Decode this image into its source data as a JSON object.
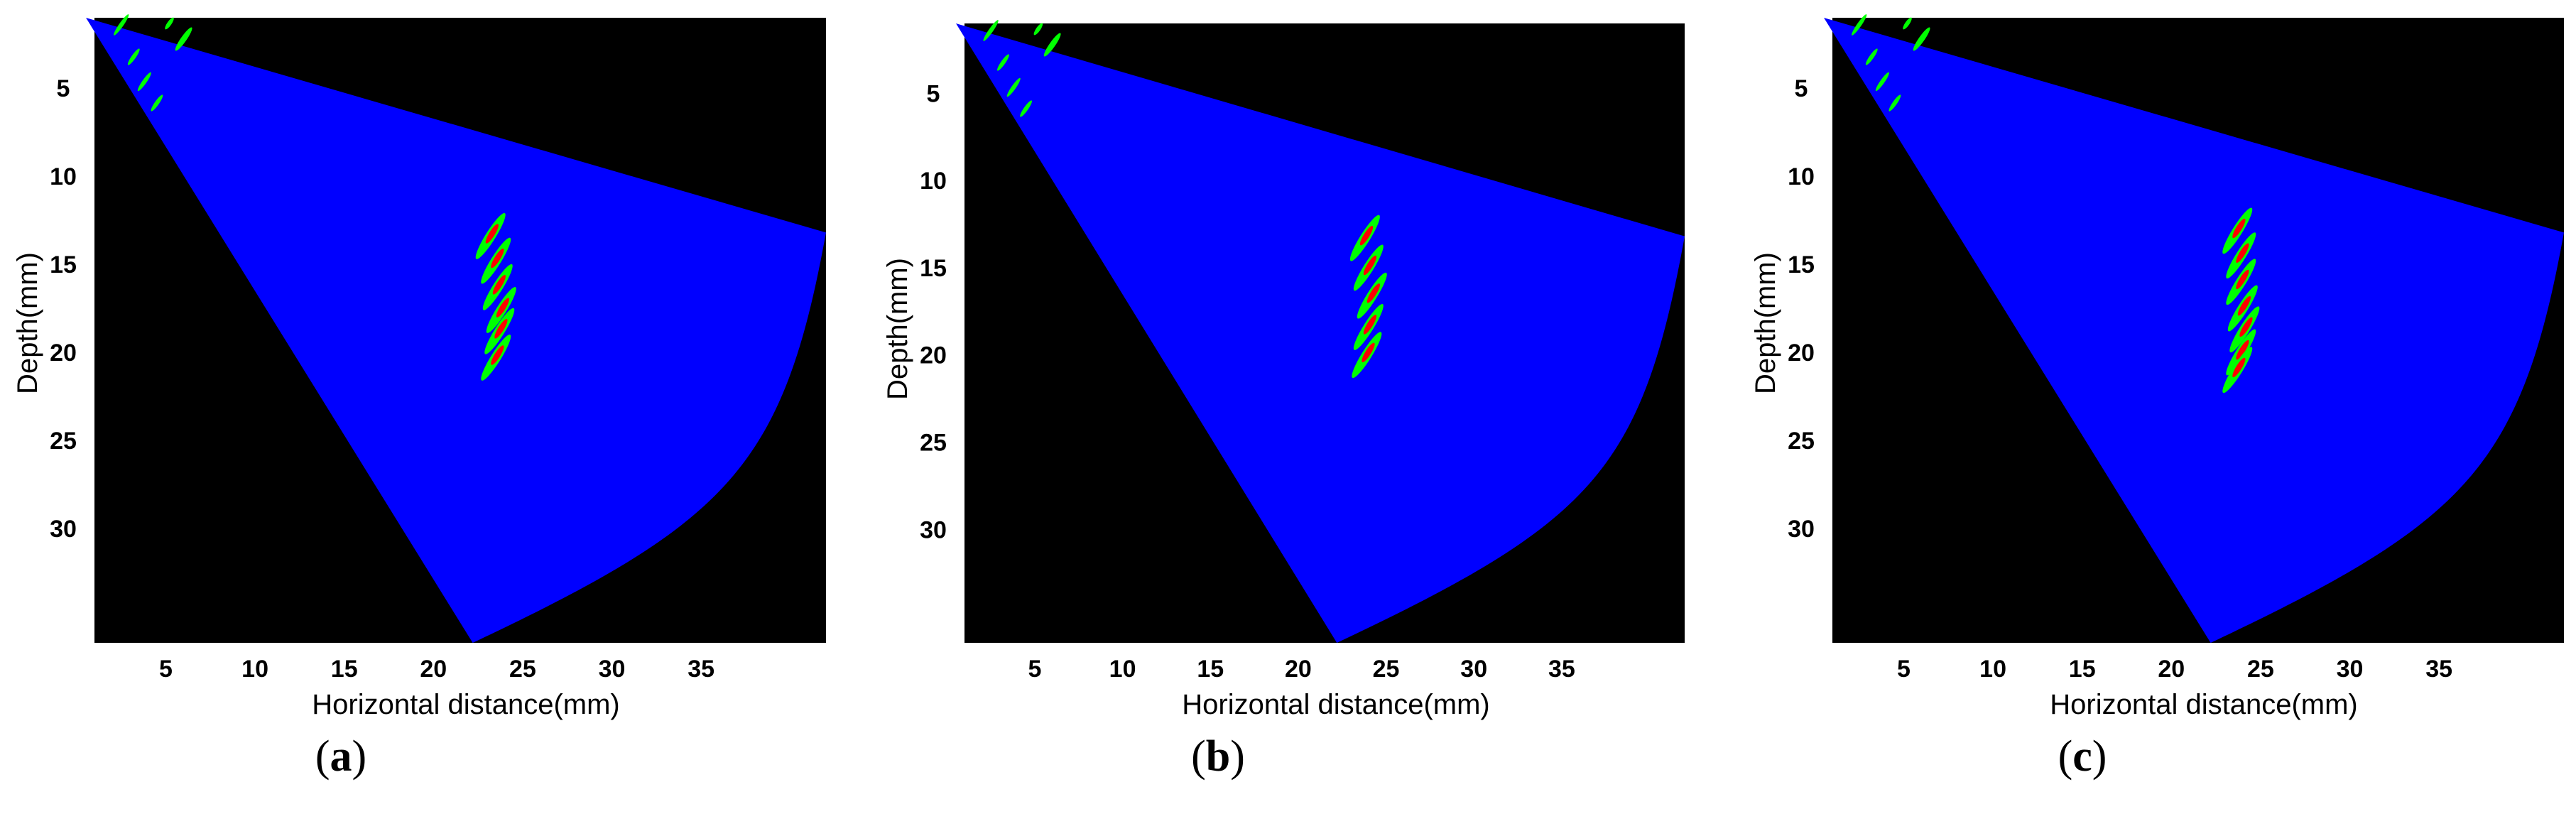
{
  "chart_data": [
    {
      "type": "heatmap",
      "caption": "a",
      "xlabel": "Horizontal distance(mm)",
      "ylabel": "Depth(mm)",
      "xticks": [
        5,
        10,
        15,
        20,
        25,
        30,
        35
      ],
      "yticks": [
        5,
        10,
        15,
        20,
        25,
        30
      ],
      "xlim": [
        1,
        42
      ],
      "ylim": [
        1,
        36.5
      ],
      "sector": {
        "apex": [
          1,
          1
        ],
        "bottom_point": [
          22.2,
          36.5
        ],
        "top_edge_end": [
          42,
          13.2
        ]
      },
      "colors": {
        "background": "#000000",
        "sector": "#0000ff",
        "echo_outer": "#00ff00",
        "echo_core": "#ff0000"
      },
      "defect_echoes": [
        {
          "x": 23.2,
          "y": 13.4
        },
        {
          "x": 23.5,
          "y": 14.8
        },
        {
          "x": 23.6,
          "y": 16.3
        },
        {
          "x": 23.8,
          "y": 17.6
        },
        {
          "x": 23.7,
          "y": 18.8
        },
        {
          "x": 23.5,
          "y": 20.3
        }
      ]
    },
    {
      "type": "heatmap",
      "caption": "b",
      "xlabel": "Horizontal distance(mm)",
      "ylabel": "Depth(mm)",
      "xticks": [
        5,
        10,
        15,
        20,
        25,
        30,
        35
      ],
      "yticks": [
        5,
        10,
        15,
        20,
        25,
        30
      ],
      "xlim": [
        1,
        42
      ],
      "ylim": [
        1,
        36.5
      ],
      "sector": {
        "apex": [
          1,
          1
        ],
        "bottom_point": [
          22.2,
          36.5
        ],
        "top_edge_end": [
          42,
          13.2
        ]
      },
      "colors": {
        "background": "#000000",
        "sector": "#0000ff",
        "echo_outer": "#00ff00",
        "echo_core": "#ff0000"
      },
      "defect_echoes": [
        {
          "x": 23.8,
          "y": 13.3
        },
        {
          "x": 24.0,
          "y": 15.0
        },
        {
          "x": 24.2,
          "y": 16.6
        },
        {
          "x": 24.0,
          "y": 18.4
        },
        {
          "x": 23.9,
          "y": 20.0
        }
      ]
    },
    {
      "type": "heatmap",
      "caption": "c",
      "xlabel": "Horizontal distance(mm)",
      "ylabel": "Depth(mm)",
      "xticks": [
        5,
        10,
        15,
        20,
        25,
        30,
        35
      ],
      "yticks": [
        5,
        10,
        15,
        20,
        25,
        30
      ],
      "xlim": [
        1,
        42
      ],
      "ylim": [
        1,
        36.5
      ],
      "sector": {
        "apex": [
          1,
          1
        ],
        "bottom_point": [
          22.2,
          36.5
        ],
        "top_edge_end": [
          42,
          13.2
        ]
      },
      "colors": {
        "background": "#000000",
        "sector": "#0000ff",
        "echo_outer": "#00ff00",
        "echo_core": "#ff0000"
      },
      "defect_echoes": [
        {
          "x": 23.7,
          "y": 13.1
        },
        {
          "x": 23.9,
          "y": 14.5
        },
        {
          "x": 23.9,
          "y": 16.0
        },
        {
          "x": 24.0,
          "y": 17.5
        },
        {
          "x": 24.1,
          "y": 18.7
        },
        {
          "x": 23.9,
          "y": 20.0
        },
        {
          "x": 23.7,
          "y": 21.0
        }
      ]
    }
  ]
}
